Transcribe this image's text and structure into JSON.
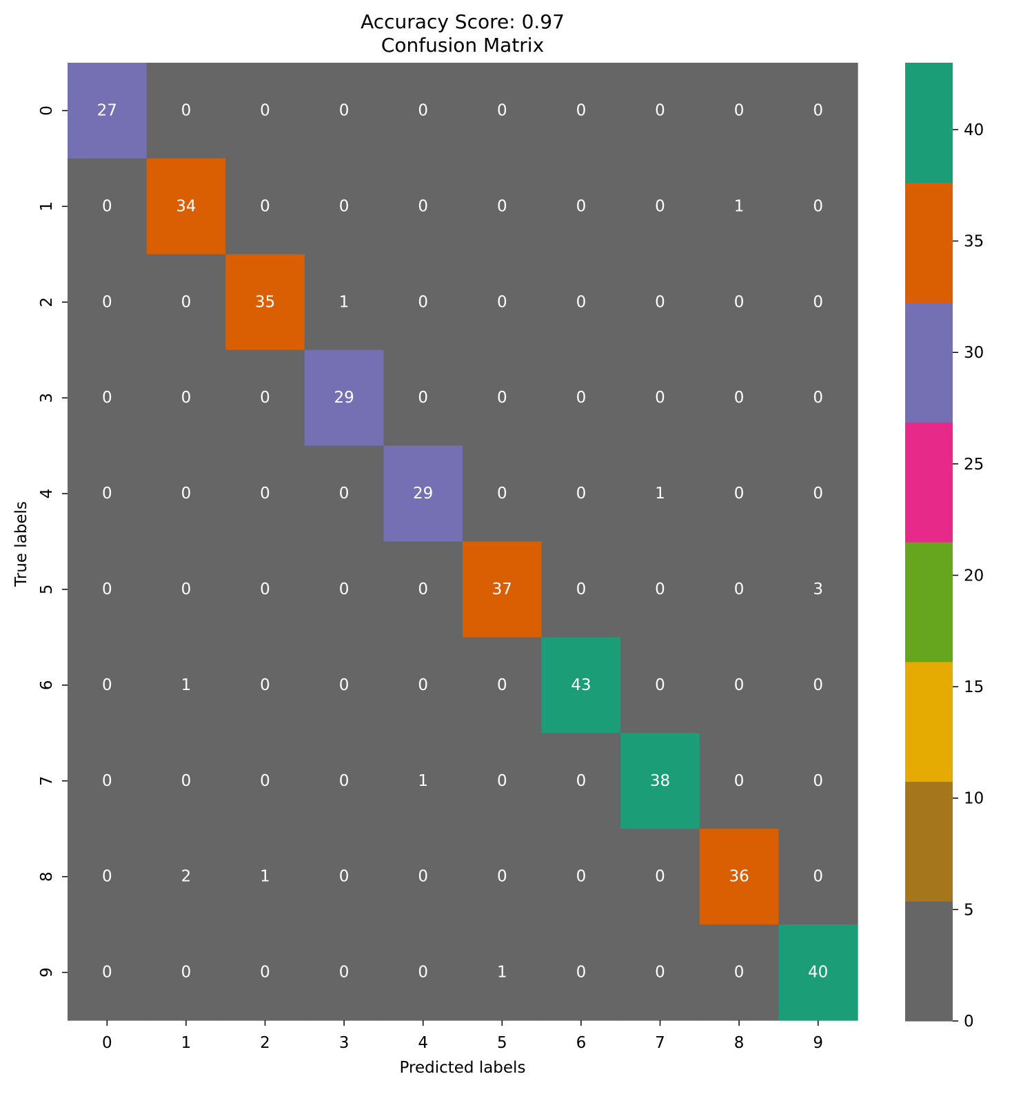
{
  "chart_data": {
    "type": "heatmap",
    "title": "Accuracy Score: 0.97",
    "subtitle": "Confusion Matrix",
    "xlabel": "Predicted labels",
    "ylabel": "True labels",
    "x_ticks": [
      "0",
      "1",
      "2",
      "3",
      "4",
      "5",
      "6",
      "7",
      "8",
      "9"
    ],
    "y_ticks": [
      "0",
      "1",
      "2",
      "3",
      "4",
      "5",
      "6",
      "7",
      "8",
      "9"
    ],
    "matrix": [
      [
        27,
        0,
        0,
        0,
        0,
        0,
        0,
        0,
        0,
        0
      ],
      [
        0,
        34,
        0,
        0,
        0,
        0,
        0,
        0,
        1,
        0
      ],
      [
        0,
        0,
        35,
        1,
        0,
        0,
        0,
        0,
        0,
        0
      ],
      [
        0,
        0,
        0,
        29,
        0,
        0,
        0,
        0,
        0,
        0
      ],
      [
        0,
        0,
        0,
        0,
        29,
        0,
        0,
        1,
        0,
        0
      ],
      [
        0,
        0,
        0,
        0,
        0,
        37,
        0,
        0,
        0,
        3
      ],
      [
        0,
        1,
        0,
        0,
        0,
        0,
        43,
        0,
        0,
        0
      ],
      [
        0,
        0,
        0,
        0,
        1,
        0,
        0,
        38,
        0,
        0
      ],
      [
        0,
        2,
        1,
        0,
        0,
        0,
        0,
        0,
        36,
        0
      ],
      [
        0,
        0,
        0,
        0,
        0,
        1,
        0,
        0,
        0,
        40
      ]
    ],
    "colorbar": {
      "colormap": "Dark2",
      "range": [
        0,
        43
      ],
      "ticks": [
        0,
        5,
        10,
        15,
        20,
        25,
        30,
        35,
        40
      ],
      "colors": [
        "#666666",
        "#a6761d",
        "#e6ab02",
        "#66a61e",
        "#e7298a",
        "#7570b3",
        "#d95f02",
        "#1b9e77"
      ]
    }
  }
}
